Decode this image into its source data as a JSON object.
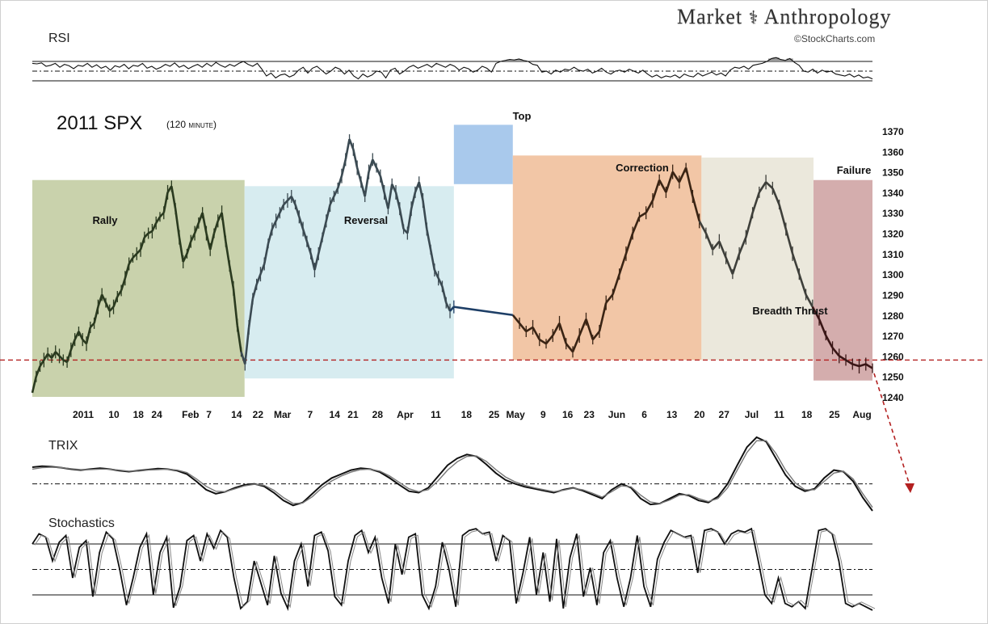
{
  "branding": {
    "brand_left": "Market",
    "brand_right": "Anthropology",
    "credit": "©StockCharts.com"
  },
  "colors": {
    "rally": "#c9d2ac",
    "reversal": "#d7ecf0",
    "top": "#a9c9ec",
    "correction": "#f2c6a6",
    "breadth_thrust": "#ebe8dc",
    "failure": "#d4adad",
    "support_line": "#b32020"
  },
  "chart_data": [
    {
      "type": "line",
      "panel": "RSI",
      "title": "RSI",
      "series": [
        {
          "values": [
            66,
            65,
            67,
            60,
            62,
            66,
            58,
            64,
            61,
            55,
            62,
            60,
            66,
            58,
            63,
            56,
            60,
            52,
            61,
            58,
            64,
            55,
            62,
            60,
            66,
            56,
            60,
            54,
            58,
            64,
            60,
            67,
            58,
            62,
            55,
            60,
            64,
            58,
            66,
            60,
            68,
            62,
            58,
            64,
            60,
            66,
            70,
            64,
            60,
            66,
            54,
            40,
            46,
            36,
            42,
            44,
            38,
            42,
            52,
            58,
            46,
            56,
            60,
            52,
            44,
            50,
            58,
            54,
            44,
            52,
            40,
            34,
            44,
            38,
            42,
            50,
            48,
            36,
            52,
            56,
            44,
            50,
            58,
            62,
            56,
            60,
            64,
            58,
            66,
            62,
            58,
            64,
            60,
            52,
            58,
            55,
            48,
            52,
            60,
            56,
            48,
            66,
            70,
            72,
            74,
            73,
            75,
            72,
            70,
            64,
            62,
            48,
            50,
            44,
            52,
            48,
            54,
            52,
            58,
            52,
            50,
            54,
            46,
            50,
            56,
            48,
            44,
            50,
            52,
            48,
            54,
            50,
            46,
            52,
            44,
            38,
            42,
            36,
            40,
            38,
            42,
            36,
            44,
            40,
            38,
            46,
            40,
            44,
            48,
            42,
            46,
            40,
            52,
            58,
            56,
            60,
            54,
            62,
            64,
            66,
            70,
            76,
            78,
            74,
            72,
            76,
            68,
            62,
            50,
            48,
            54,
            46,
            52,
            48,
            50,
            44,
            42,
            40,
            44,
            38,
            42,
            36,
            38,
            34
          ]
        }
      ],
      "bands": [
        70,
        50,
        30
      ]
    },
    {
      "type": "line",
      "panel": "price",
      "title": "2011 SPX",
      "subtitle": "(120 minute)",
      "x_tick_labels": [
        "2011",
        "10",
        "18",
        "24",
        "Feb",
        "7",
        "14",
        "22",
        "Mar",
        "7",
        "14",
        "21",
        "28",
        "Apr",
        "11",
        "18",
        "25",
        "May",
        "9",
        "16",
        "23",
        "Jun",
        "6",
        "13",
        "20",
        "27",
        "Jul",
        "11",
        "18",
        "25",
        "Aug"
      ],
      "y_tick_labels": [
        "1370",
        "1360",
        "1350",
        "1340",
        "1330",
        "1320",
        "1310",
        "1300",
        "1290",
        "1280",
        "1270",
        "1260",
        "1250",
        "1240"
      ],
      "ylim": [
        1240,
        1370
      ],
      "support_level": 1258,
      "series": [
        {
          "name": "SPX",
          "x": [
            0,
            2,
            4,
            6,
            8,
            10,
            12,
            14,
            16,
            18,
            20,
            22,
            24,
            26,
            28,
            30,
            32,
            34,
            36,
            38,
            40,
            42,
            44,
            46,
            48,
            50,
            52,
            54,
            56,
            58,
            60,
            62,
            64,
            66,
            68,
            70,
            72,
            74,
            76,
            78,
            80,
            82,
            84,
            86,
            88,
            90,
            92,
            94,
            96,
            98,
            100,
            102,
            104,
            106,
            108,
            110,
            112,
            114,
            116,
            118,
            120,
            122,
            124,
            126,
            128,
            130,
            132,
            134,
            136,
            138,
            140,
            142,
            144,
            146,
            148,
            150,
            152,
            154,
            156,
            158,
            160,
            162,
            164,
            166,
            168,
            170,
            172,
            174,
            176,
            178,
            180,
            182,
            184,
            186,
            188,
            190,
            192,
            194,
            196,
            198,
            200,
            202,
            204,
            206,
            208,
            210,
            212,
            214,
            216,
            218
          ],
          "y": [
            1242,
            1250,
            1255,
            1258,
            1261,
            1259,
            1262,
            1260,
            1258,
            1257,
            1263,
            1268,
            1272,
            1268,
            1266,
            1274,
            1276,
            1284,
            1290,
            1286,
            1282,
            1284,
            1289,
            1292,
            1298,
            1305,
            1308,
            1310,
            1312,
            1318,
            1320,
            1321,
            1325,
            1328,
            1330,
            1340,
            1343,
            1332,
            1318,
            1306,
            1310,
            1316,
            1320,
            1325,
            1330,
            1320,
            1312,
            1320,
            1326,
            1330,
            1316,
            1304,
            1293,
            1275,
            1262,
            1256,
            1274,
            1288,
            1295,
            1300,
            1305,
            1315,
            1322,
            1326,
            1330,
            1334,
            1336,
            1338,
            1334,
            1328,
            1322,
            1316,
            1310,
            1302,
            1310,
            1318,
            1326,
            1334,
            1338,
            1342,
            1348,
            1356,
            1366,
            1361,
            1352,
            1345,
            1338,
            1350,
            1356,
            1352,
            1348,
            1340,
            1332,
            1344,
            1340,
            1332,
            1322,
            1320,
            1332,
            1340,
            1345,
            1336,
            1322,
            1312,
            1302,
            1298,
            1294,
            1286,
            1282,
            1284
          ],
          "x2": [
            110,
            112,
            114,
            116,
            118,
            120,
            122,
            124,
            126,
            128,
            130,
            132,
            134,
            136,
            138,
            140,
            142,
            144,
            146,
            148,
            150,
            152,
            154,
            156,
            158,
            160,
            162,
            164,
            166,
            168,
            170,
            172,
            174,
            176,
            178,
            180,
            182,
            184,
            186,
            188,
            190,
            192,
            194,
            196,
            198,
            200,
            202,
            204,
            206,
            208,
            210,
            212,
            214,
            216,
            218
          ],
          "y2": [
            1280,
            1276,
            1272,
            1274,
            1268,
            1266,
            1270,
            1276,
            1266,
            1262,
            1270,
            1278,
            1268,
            1272,
            1286,
            1290,
            1300,
            1310,
            1320,
            1328,
            1330,
            1336,
            1346,
            1340,
            1350,
            1345,
            1352,
            1338,
            1326,
            1320,
            1312,
            1316,
            1308,
            1300,
            1310,
            1318,
            1330,
            1340,
            1345,
            1342,
            1334,
            1322,
            1310,
            1300,
            1290,
            1284,
            1278,
            1270,
            1264,
            1260,
            1258,
            1256,
            1255,
            1256,
            1254
          ]
        }
      ],
      "zones": [
        {
          "label": "Rally",
          "color_key": "rally",
          "x_from": 0,
          "x_to": 72,
          "y_from": 1240,
          "y_to": 1346
        },
        {
          "label": "Reversal",
          "color_key": "reversal",
          "x_from": 72,
          "x_to": 143,
          "y_from": 1249,
          "y_to": 1343
        },
        {
          "label": "Top",
          "color_key": "top",
          "x_from": 143,
          "x_to": 163,
          "y_from": 1344,
          "y_to": 1373
        },
        {
          "label": "Correction",
          "color_key": "correction",
          "x_from": 163,
          "x_to": 227,
          "y_from": 1258,
          "y_to": 1358
        },
        {
          "label": "Breadth Thrust",
          "color_key": "breadth_thrust",
          "x_from": 227,
          "x_to": 265,
          "y_from": 1258,
          "y_to": 1357
        },
        {
          "label": "Failure",
          "color_key": "failure",
          "x_from": 265,
          "x_to": 285,
          "y_from": 1248,
          "y_to": 1346
        }
      ]
    },
    {
      "type": "line",
      "panel": "TRIX",
      "title": "TRIX",
      "series": [
        {
          "values": [
            0.34,
            0.36,
            0.35,
            0.33,
            0.3,
            0.28,
            0.3,
            0.32,
            0.3,
            0.27,
            0.25,
            0.27,
            0.29,
            0.31,
            0.3,
            0.27,
            0.2,
            0.05,
            -0.12,
            -0.2,
            -0.16,
            -0.08,
            -0.02,
            0.0,
            -0.05,
            -0.18,
            -0.34,
            -0.44,
            -0.38,
            -0.2,
            -0.02,
            0.12,
            0.2,
            0.28,
            0.32,
            0.3,
            0.24,
            0.12,
            -0.02,
            -0.15,
            -0.18,
            -0.08,
            0.15,
            0.38,
            0.52,
            0.6,
            0.56,
            0.4,
            0.22,
            0.08,
            0.0,
            -0.06,
            -0.1,
            -0.14,
            -0.18,
            -0.12,
            -0.08,
            -0.14,
            -0.22,
            -0.3,
            -0.12,
            0.0,
            -0.08,
            -0.3,
            -0.42,
            -0.4,
            -0.3,
            -0.2,
            -0.24,
            -0.34,
            -0.38,
            -0.26,
            0.0,
            0.38,
            0.75,
            0.95,
            0.86,
            0.52,
            0.18,
            -0.05,
            -0.15,
            -0.1,
            0.12,
            0.28,
            0.25,
            0.05,
            -0.28,
            -0.55
          ]
        },
        {
          "values": [
            0.3,
            0.33,
            0.34,
            0.33,
            0.31,
            0.29,
            0.29,
            0.3,
            0.3,
            0.28,
            0.26,
            0.26,
            0.28,
            0.29,
            0.3,
            0.28,
            0.23,
            0.1,
            -0.05,
            -0.15,
            -0.16,
            -0.1,
            -0.04,
            -0.01,
            -0.03,
            -0.13,
            -0.28,
            -0.4,
            -0.39,
            -0.26,
            -0.08,
            0.06,
            0.16,
            0.24,
            0.29,
            0.3,
            0.26,
            0.16,
            0.03,
            -0.1,
            -0.16,
            -0.12,
            0.06,
            0.28,
            0.45,
            0.56,
            0.57,
            0.46,
            0.29,
            0.14,
            0.04,
            -0.03,
            -0.08,
            -0.12,
            -0.16,
            -0.13,
            -0.09,
            -0.12,
            -0.19,
            -0.27,
            -0.16,
            -0.04,
            -0.06,
            -0.23,
            -0.37,
            -0.4,
            -0.33,
            -0.23,
            -0.22,
            -0.3,
            -0.36,
            -0.3,
            -0.08,
            0.28,
            0.64,
            0.88,
            0.88,
            0.62,
            0.28,
            0.02,
            -0.12,
            -0.12,
            0.05,
            0.22,
            0.26,
            0.1,
            -0.2,
            -0.48
          ]
        }
      ],
      "zero_line": 0
    },
    {
      "type": "line",
      "panel": "Stochastics",
      "title": "Stochastics",
      "series": [
        {
          "values": [
            80,
            92,
            88,
            60,
            82,
            90,
            40,
            76,
            84,
            18,
            70,
            94,
            86,
            50,
            8,
            40,
            76,
            92,
            20,
            70,
            88,
            5,
            30,
            84,
            90,
            60,
            92,
            75,
            96,
            88,
            40,
            4,
            12,
            60,
            34,
            8,
            66,
            22,
            4,
            60,
            80,
            30,
            90,
            94,
            72,
            18,
            8,
            60,
            90,
            96,
            70,
            88,
            40,
            10,
            80,
            44,
            88,
            92,
            20,
            4,
            30,
            82,
            50,
            6,
            90,
            96,
            98,
            92,
            94,
            60,
            90,
            84,
            10,
            46,
            88,
            20,
            70,
            12,
            86,
            4,
            64,
            92,
            18,
            52,
            8,
            70,
            84,
            40,
            6,
            40,
            90,
            30,
            6,
            62,
            82,
            96,
            92,
            88,
            90,
            46,
            96,
            98,
            94,
            80,
            92,
            96,
            94,
            98,
            60,
            20,
            10,
            40,
            10,
            6,
            12,
            4,
            50,
            96,
            98,
            92,
            60,
            10,
            6,
            10,
            6,
            2
          ]
        }
      ],
      "bands": [
        80,
        50,
        20
      ]
    }
  ]
}
